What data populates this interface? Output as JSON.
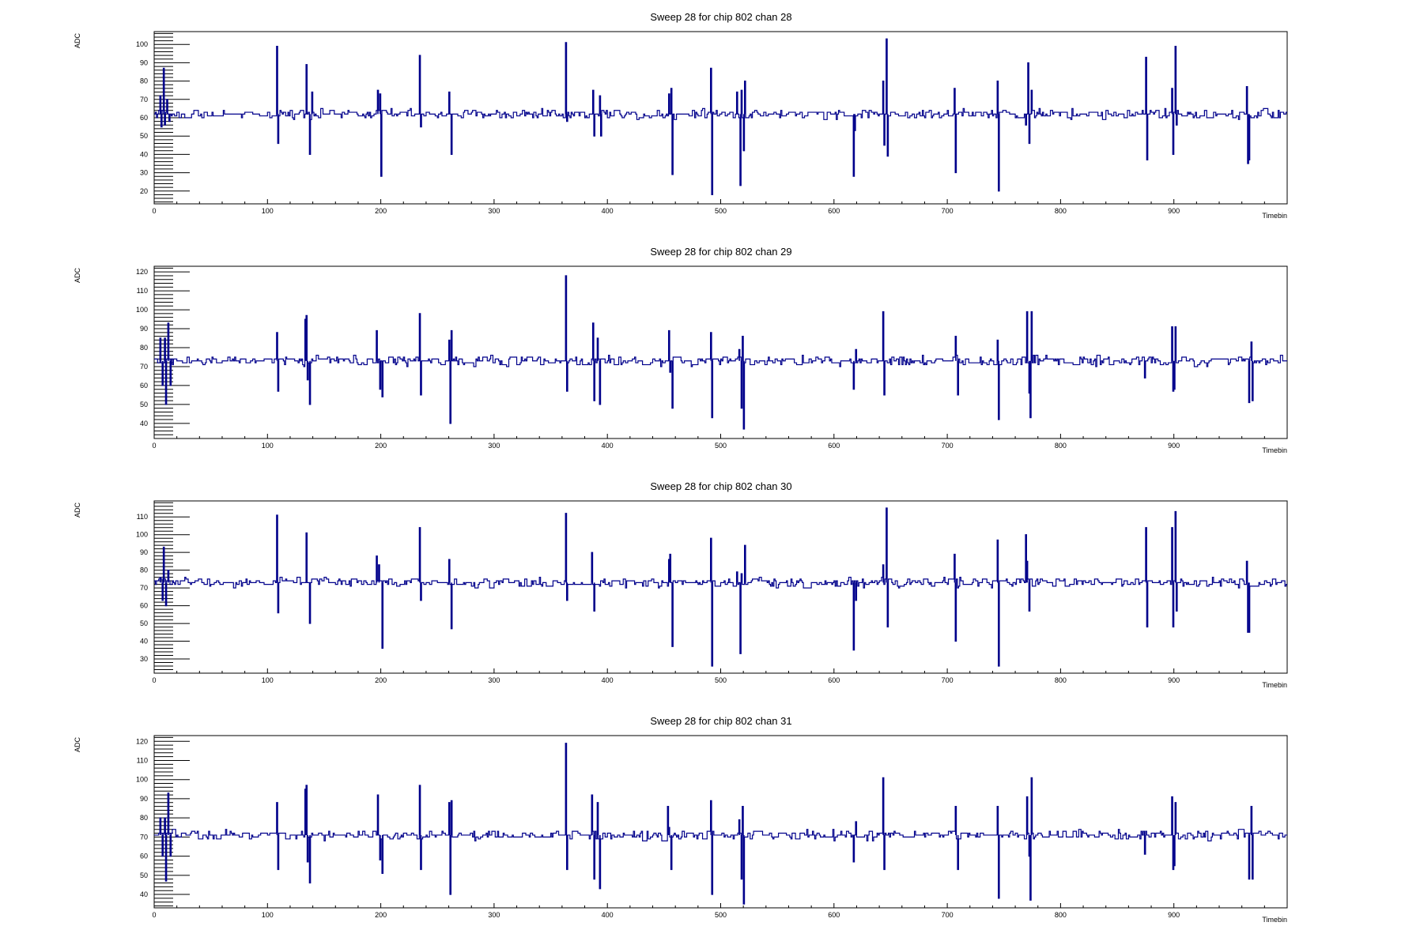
{
  "page": {
    "background": "#ffffff",
    "line_color": "#00008b"
  },
  "chart_data": [
    {
      "type": "line",
      "title": "Sweep 28 for chip 802 chan 28",
      "xlabel": "Timebin",
      "ylabel": "ADC",
      "xlim": [
        0,
        1000
      ],
      "ylim": [
        13,
        107
      ],
      "xticks": [
        0,
        100,
        200,
        300,
        400,
        500,
        600,
        700,
        800,
        900
      ],
      "yticks": [
        20,
        30,
        40,
        50,
        60,
        70,
        80,
        90,
        100
      ],
      "baseline": 62,
      "noise": 1.6,
      "spikes": [
        [
          5,
          72
        ],
        [
          6,
          55
        ],
        [
          8,
          87
        ],
        [
          9,
          56
        ],
        [
          11,
          70
        ],
        [
          13,
          58
        ],
        [
          108,
          99
        ],
        [
          109,
          46
        ],
        [
          134,
          89
        ],
        [
          137,
          40
        ],
        [
          139,
          74
        ],
        [
          197,
          75
        ],
        [
          199,
          73
        ],
        [
          200,
          28
        ],
        [
          234,
          94
        ],
        [
          235,
          55
        ],
        [
          260,
          74
        ],
        [
          262,
          40
        ],
        [
          363,
          101
        ],
        [
          364,
          58
        ],
        [
          387,
          75
        ],
        [
          388,
          50
        ],
        [
          393,
          72
        ],
        [
          394,
          50
        ],
        [
          454,
          73
        ],
        [
          456,
          76
        ],
        [
          457,
          29
        ],
        [
          491,
          87
        ],
        [
          492,
          18
        ],
        [
          514,
          74
        ],
        [
          517,
          23
        ],
        [
          518,
          75
        ],
        [
          520,
          42
        ],
        [
          521,
          80
        ],
        [
          617,
          28
        ],
        [
          618,
          53
        ],
        [
          643,
          80
        ],
        [
          644,
          45
        ],
        [
          646,
          103
        ],
        [
          647,
          39
        ],
        [
          706,
          76
        ],
        [
          707,
          30
        ],
        [
          744,
          80
        ],
        [
          745,
          20
        ],
        [
          769,
          56
        ],
        [
          771,
          90
        ],
        [
          772,
          46
        ],
        [
          774,
          75
        ],
        [
          875,
          93
        ],
        [
          876,
          37
        ],
        [
          898,
          76
        ],
        [
          899,
          40
        ],
        [
          901,
          99
        ],
        [
          902,
          56
        ],
        [
          964,
          77
        ],
        [
          965,
          35
        ],
        [
          966,
          37
        ]
      ]
    },
    {
      "type": "line",
      "title": "Sweep 28 for chip 802 chan 29",
      "xlabel": "Timebin",
      "ylabel": "ADC",
      "xlim": [
        0,
        1000
      ],
      "ylim": [
        32,
        123
      ],
      "xticks": [
        0,
        100,
        200,
        300,
        400,
        500,
        600,
        700,
        800,
        900
      ],
      "yticks": [
        40,
        50,
        60,
        70,
        80,
        90,
        100,
        110,
        120
      ],
      "baseline": 73,
      "noise": 1.6,
      "spikes": [
        [
          5,
          85
        ],
        [
          7,
          60
        ],
        [
          9,
          85
        ],
        [
          10,
          50
        ],
        [
          12,
          93
        ],
        [
          14,
          60
        ],
        [
          108,
          88
        ],
        [
          109,
          57
        ],
        [
          133,
          95
        ],
        [
          134,
          97
        ],
        [
          135,
          63
        ],
        [
          137,
          50
        ],
        [
          196,
          89
        ],
        [
          199,
          58
        ],
        [
          201,
          54
        ],
        [
          234,
          98
        ],
        [
          235,
          55
        ],
        [
          260,
          84
        ],
        [
          261,
          40
        ],
        [
          262,
          89
        ],
        [
          363,
          118
        ],
        [
          364,
          57
        ],
        [
          387,
          93
        ],
        [
          388,
          52
        ],
        [
          391,
          85
        ],
        [
          393,
          50
        ],
        [
          454,
          89
        ],
        [
          455,
          67
        ],
        [
          457,
          48
        ],
        [
          491,
          88
        ],
        [
          492,
          43
        ],
        [
          516,
          79
        ],
        [
          518,
          48
        ],
        [
          519,
          86
        ],
        [
          520,
          37
        ],
        [
          617,
          58
        ],
        [
          619,
          79
        ],
        [
          643,
          99
        ],
        [
          644,
          55
        ],
        [
          707,
          86
        ],
        [
          709,
          55
        ],
        [
          744,
          84
        ],
        [
          745,
          42
        ],
        [
          770,
          99
        ],
        [
          772,
          56
        ],
        [
          773,
          43
        ],
        [
          774,
          99
        ],
        [
          874,
          64
        ],
        [
          898,
          91
        ],
        [
          899,
          57
        ],
        [
          900,
          58
        ],
        [
          901,
          91
        ],
        [
          966,
          51
        ],
        [
          968,
          83
        ],
        [
          969,
          52
        ]
      ]
    },
    {
      "type": "line",
      "title": "Sweep 28 for chip 802 chan 30",
      "xlabel": "Timebin",
      "ylabel": "ADC",
      "xlim": [
        0,
        1000
      ],
      "ylim": [
        22,
        119
      ],
      "xticks": [
        0,
        100,
        200,
        300,
        400,
        500,
        600,
        700,
        800,
        900
      ],
      "yticks": [
        30,
        40,
        50,
        60,
        70,
        80,
        90,
        100,
        110
      ],
      "baseline": 73,
      "noise": 1.5,
      "spikes": [
        [
          5,
          76
        ],
        [
          7,
          63
        ],
        [
          8,
          93
        ],
        [
          10,
          60
        ],
        [
          12,
          80
        ],
        [
          108,
          111
        ],
        [
          109,
          56
        ],
        [
          134,
          101
        ],
        [
          137,
          50
        ],
        [
          196,
          88
        ],
        [
          198,
          83
        ],
        [
          201,
          36
        ],
        [
          234,
          104
        ],
        [
          235,
          63
        ],
        [
          260,
          86
        ],
        [
          262,
          47
        ],
        [
          363,
          112
        ],
        [
          364,
          63
        ],
        [
          386,
          90
        ],
        [
          388,
          57
        ],
        [
          454,
          86
        ],
        [
          455,
          89
        ],
        [
          457,
          37
        ],
        [
          491,
          98
        ],
        [
          492,
          26
        ],
        [
          514,
          79
        ],
        [
          517,
          33
        ],
        [
          518,
          78
        ],
        [
          521,
          94
        ],
        [
          617,
          35
        ],
        [
          619,
          63
        ],
        [
          643,
          83
        ],
        [
          646,
          115
        ],
        [
          647,
          48
        ],
        [
          706,
          89
        ],
        [
          707,
          40
        ],
        [
          744,
          97
        ],
        [
          745,
          26
        ],
        [
          769,
          100
        ],
        [
          770,
          85
        ],
        [
          772,
          57
        ],
        [
          875,
          104
        ],
        [
          876,
          48
        ],
        [
          898,
          104
        ],
        [
          899,
          48
        ],
        [
          901,
          113
        ],
        [
          902,
          57
        ],
        [
          964,
          85
        ],
        [
          965,
          45
        ],
        [
          966,
          45
        ]
      ]
    },
    {
      "type": "line",
      "title": "Sweep 28 for chip 802 chan 31",
      "xlabel": "Timebin",
      "ylabel": "ADC",
      "xlim": [
        0,
        1000
      ],
      "ylim": [
        33,
        123
      ],
      "xticks": [
        0,
        100,
        200,
        300,
        400,
        500,
        600,
        700,
        800,
        900
      ],
      "yticks": [
        40,
        50,
        60,
        70,
        80,
        90,
        100,
        110,
        120
      ],
      "baseline": 71,
      "noise": 1.5,
      "spikes": [
        [
          5,
          80
        ],
        [
          7,
          60
        ],
        [
          9,
          80
        ],
        [
          10,
          47
        ],
        [
          12,
          93
        ],
        [
          14,
          60
        ],
        [
          108,
          88
        ],
        [
          109,
          53
        ],
        [
          133,
          95
        ],
        [
          134,
          97
        ],
        [
          135,
          57
        ],
        [
          137,
          46
        ],
        [
          197,
          92
        ],
        [
          199,
          58
        ],
        [
          201,
          51
        ],
        [
          234,
          97
        ],
        [
          235,
          53
        ],
        [
          260,
          88
        ],
        [
          261,
          40
        ],
        [
          262,
          89
        ],
        [
          363,
          119
        ],
        [
          364,
          53
        ],
        [
          386,
          92
        ],
        [
          388,
          48
        ],
        [
          391,
          88
        ],
        [
          393,
          43
        ],
        [
          453,
          86
        ],
        [
          454,
          75
        ],
        [
          456,
          53
        ],
        [
          491,
          89
        ],
        [
          492,
          40
        ],
        [
          516,
          79
        ],
        [
          518,
          48
        ],
        [
          519,
          86
        ],
        [
          520,
          35
        ],
        [
          617,
          57
        ],
        [
          619,
          78
        ],
        [
          643,
          101
        ],
        [
          644,
          53
        ],
        [
          707,
          86
        ],
        [
          709,
          53
        ],
        [
          744,
          86
        ],
        [
          745,
          38
        ],
        [
          770,
          91
        ],
        [
          772,
          60
        ],
        [
          773,
          37
        ],
        [
          774,
          101
        ],
        [
          874,
          61
        ],
        [
          898,
          91
        ],
        [
          899,
          53
        ],
        [
          900,
          55
        ],
        [
          901,
          88
        ],
        [
          966,
          48
        ],
        [
          968,
          86
        ],
        [
          969,
          48
        ]
      ]
    }
  ]
}
